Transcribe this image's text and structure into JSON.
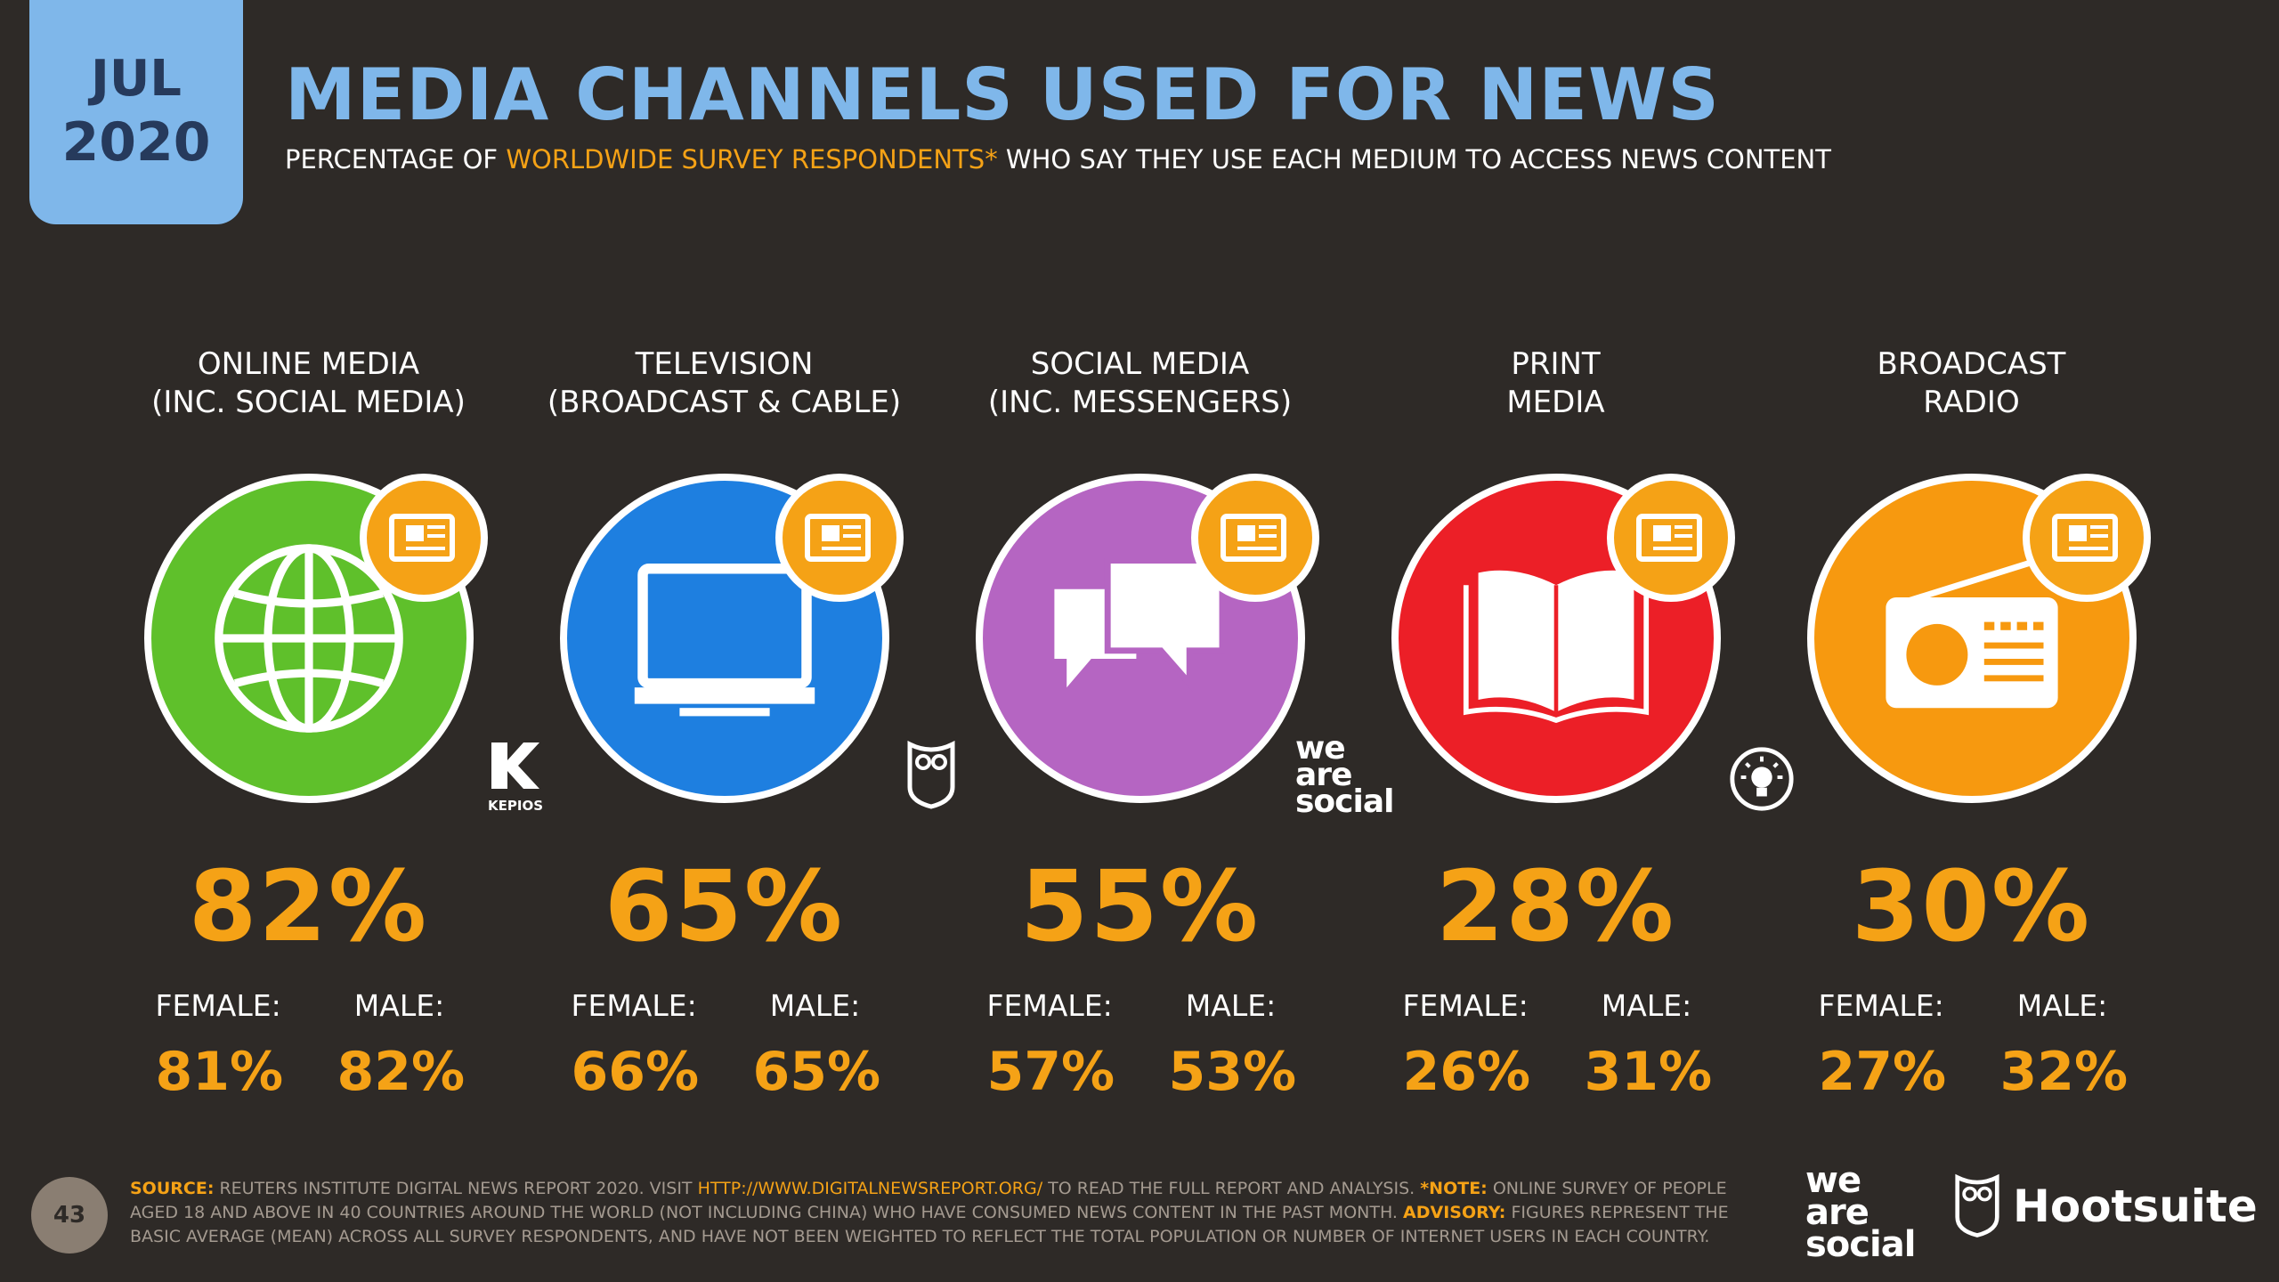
{
  "badge": {
    "month": "JUL",
    "year": "2020"
  },
  "title": "MEDIA CHANNELS USED FOR NEWS",
  "subtitle": {
    "pre": "PERCENTAGE OF ",
    "highlight": "WORLDWIDE SURVEY RESPONDENTS*",
    "post": " WHO SAY THEY USE EACH MEDIUM TO ACCESS NEWS CONTENT"
  },
  "gender_labels": {
    "female": "FEMALE:",
    "male": "MALE:"
  },
  "channels": [
    {
      "line1": "ONLINE MEDIA",
      "line2": "(INC. SOCIAL MEDIA)",
      "total": "82%",
      "female": "81%",
      "male": "82%",
      "color": "#5fc02b",
      "icon": "globe-icon"
    },
    {
      "line1": "TELEVISION",
      "line2": "(BROADCAST & CABLE)",
      "total": "65%",
      "female": "66%",
      "male": "65%",
      "color": "#1e7fe0",
      "icon": "tv-icon"
    },
    {
      "line1": "SOCIAL MEDIA",
      "line2": "(INC. MESSENGERS)",
      "total": "55%",
      "female": "57%",
      "male": "53%",
      "color": "#b565c2",
      "icon": "chat-bubbles-icon"
    },
    {
      "line1": "PRINT",
      "line2": "MEDIA",
      "total": "28%",
      "female": "26%",
      "male": "31%",
      "color": "#ec1f27",
      "icon": "book-icon"
    },
    {
      "line1": "BROADCAST",
      "line2": "RADIO",
      "total": "30%",
      "female": "27%",
      "male": "32%",
      "color": "#f7990f",
      "icon": "radio-icon"
    }
  ],
  "brand_marks": {
    "kepios": "KEPIOS",
    "was": [
      "we",
      "are",
      "social"
    ]
  },
  "footer": {
    "page": "43",
    "source_label": "SOURCE:",
    "source_text": " REUTERS INSTITUTE DIGITAL NEWS REPORT 2020. VISIT ",
    "source_url": "HTTP://WWW.DIGITALNEWSREPORT.ORG/",
    "source_text2": " TO READ THE FULL REPORT AND ANALYSIS. ",
    "note_label": "*NOTE:",
    "note_text": " ONLINE SURVEY OF PEOPLE AGED 18 AND ABOVE IN 40 COUNTRIES AROUND THE WORLD (NOT INCLUDING CHINA) WHO HAVE CONSUMED NEWS CONTENT IN THE PAST MONTH. ",
    "advisory_label": "ADVISORY:",
    "advisory_text": " FIGURES REPRESENT THE BASIC AVERAGE (MEAN) ACROSS ALL SURVEY RESPONDENTS, AND HAVE NOT BEEN WEIGHTED TO REFLECT THE TOTAL POPULATION OR NUMBER OF INTERNET USERS IN EACH COUNTRY.",
    "logo_was": [
      "we",
      "are",
      "social"
    ],
    "logo_hootsuite": "Hootsuite"
  }
}
